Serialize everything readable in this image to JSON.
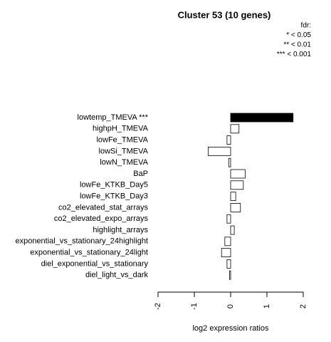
{
  "chart_data": {
    "type": "hbar",
    "title": "Cluster 53 (10 genes)",
    "legend_lines": [
      "fdr:",
      "* < 0.05",
      "** < 0.01",
      "*** < 0.001"
    ],
    "xlabel": "log2 expression ratios",
    "categories": [
      "lowtemp_TMEVA ***",
      "highpH_TMEVA",
      "lowFe_TMEVA",
      "lowSi_TMEVA",
      "lowN_TMEVA",
      "BaP",
      "lowFe_KTKB_Day5",
      "lowFe_KTKB_Day3",
      "co2_elevated_stat_arrays",
      "co2_elevated_expo_arrays",
      "highlight_arrays",
      "exponential_vs_stationary_24highlight",
      "exponential_vs_stationary_24light",
      "diel_exponential_vs_stationary",
      "diel_light_vs_dark"
    ],
    "values": [
      1.72,
      0.23,
      -0.1,
      -0.62,
      -0.05,
      0.4,
      0.35,
      0.14,
      0.27,
      -0.1,
      0.1,
      -0.16,
      -0.25,
      -0.1,
      -0.03
    ],
    "colors": [
      "#000000",
      "#ffffff",
      "#ffffff",
      "#ffffff",
      "#ffffff",
      "#ffffff",
      "#ffffff",
      "#ffffff",
      "#ffffff",
      "#ffffff",
      "#ffffff",
      "#ffffff",
      "#ffffff",
      "#ffffff",
      "#ffffff"
    ],
    "xlim": [
      -2,
      2
    ],
    "xticks": [
      -2,
      -1,
      0,
      1,
      2
    ]
  }
}
